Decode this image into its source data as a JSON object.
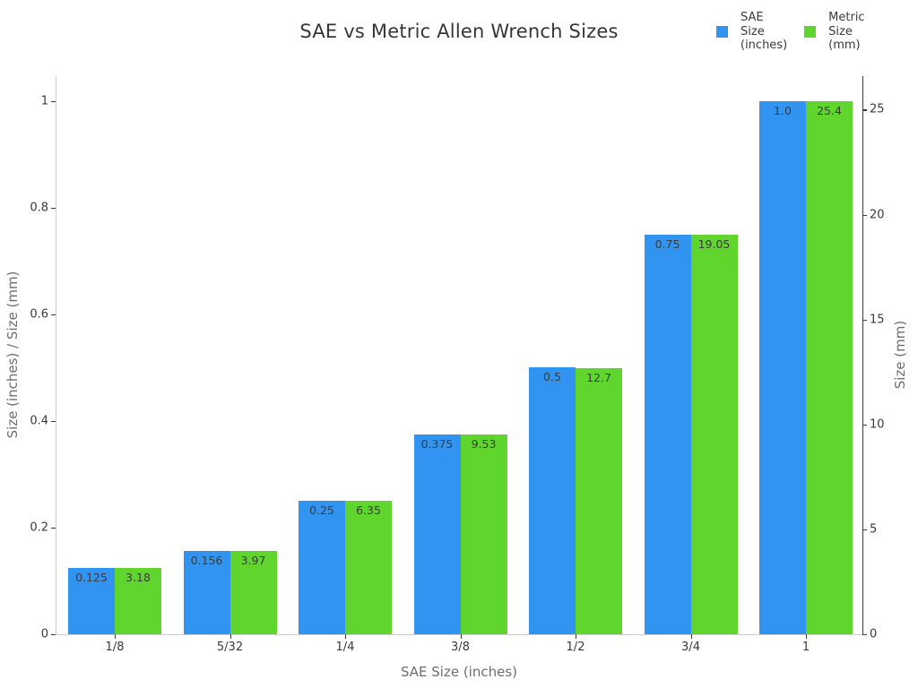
{
  "title": "SAE vs Metric Allen Wrench Sizes",
  "legend": {
    "entries": [
      {
        "id": "sae",
        "lines": [
          "SAE",
          "Size",
          "(inches)"
        ],
        "color": "#3094F0"
      },
      {
        "id": "metric",
        "lines": [
          "Metric",
          "Size",
          "(mm)"
        ],
        "color": "#5FD52D"
      }
    ]
  },
  "colors": {
    "sae_bar": "#3094F0",
    "metric_bar": "#5FD52D",
    "title_text": "#363636",
    "tick_text": "#3a3a3a",
    "axis_title_text": "#6e6e6e",
    "left_bottom_spine": "#cdcdcd",
    "right_spine": "#3a3a3a",
    "background": "#ffffff"
  },
  "chart_data": {
    "type": "bar",
    "title": "SAE vs Metric Allen Wrench Sizes",
    "categories": [
      "1/8",
      "5/32",
      "1/4",
      "3/8",
      "1/2",
      "3/4",
      "1"
    ],
    "series": [
      {
        "name": "SAE Size (inches)",
        "yaxis": "left",
        "color": "#3094F0",
        "values": [
          0.125,
          0.156,
          0.25,
          0.375,
          0.5,
          0.75,
          1.0
        ],
        "data_labels": [
          "0.125",
          "0.156",
          "0.25",
          "0.375",
          "0.5",
          "0.75",
          "1.0"
        ]
      },
      {
        "name": "Metric Size (mm)",
        "yaxis": "right",
        "color": "#5FD52D",
        "values": [
          3.18,
          3.97,
          6.35,
          9.53,
          12.7,
          19.05,
          25.4
        ],
        "data_labels": [
          "3.18",
          "3.97",
          "6.35",
          "9.53",
          "12.7",
          "19.05",
          "25.4"
        ]
      }
    ],
    "xlabel": "SAE Size (inches)",
    "ylabel_left": "Size (inches) / Size (mm)",
    "ylabel_right": "Size (mm)",
    "y_axis_left": {
      "ticks": [
        0,
        0.2,
        0.4,
        0.6,
        0.8,
        1
      ],
      "tick_labels": [
        "0",
        "0.2",
        "0.4",
        "0.6",
        "0.8",
        "1"
      ],
      "range": [
        0,
        1.047
      ]
    },
    "y_axis_right": {
      "ticks": [
        0,
        5,
        10,
        15,
        20,
        25
      ],
      "tick_labels": [
        "0",
        "5",
        "10",
        "15",
        "20",
        "25"
      ],
      "range": [
        0,
        26.6
      ]
    },
    "grid": false,
    "legend_position": "top-right",
    "data_labels_position": "inside-top"
  }
}
